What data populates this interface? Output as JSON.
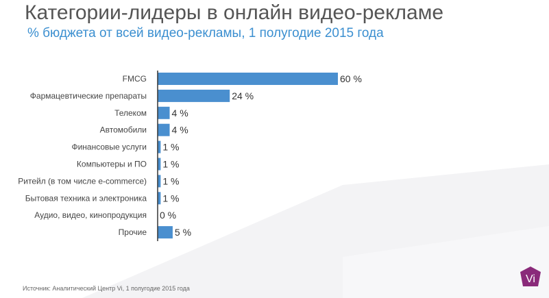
{
  "header": {
    "title": "Категории-лидеры в онлайн видео-рекламе",
    "subtitle": "% бюджета от всей видео-рекламы, 1 полугодие 2015 года"
  },
  "footer": {
    "source": "Источник: Аналитический Центр Vi, 1 полугодие 2015 года",
    "logo_text": "Vi"
  },
  "colors": {
    "bar": "#4a8fcf",
    "title": "#555555",
    "subtitle": "#3b8fd0",
    "logo": "#8a2a7a"
  },
  "chart_data": {
    "type": "bar",
    "orientation": "horizontal",
    "title": "Категории-лидеры в онлайн видео-рекламе",
    "subtitle": "% бюджета от всей видео-рекламы, 1 полугодие 2015 года",
    "categories": [
      "FMCG",
      "Фармацевтические препараты",
      "Телеком",
      "Автомобили",
      "Финансовые услуги",
      "Компьютеры и ПО",
      "Ритейл (в том числе e-commerce)",
      "Бытовая техника и электроника",
      "Аудио, видео, кинопродукция",
      "Прочие"
    ],
    "values": [
      60,
      24,
      4,
      4,
      1,
      1,
      1,
      1,
      0,
      5
    ],
    "labels": [
      "60 %",
      "24 %",
      "4 %",
      "4 %",
      "1 %",
      "1 %",
      "1 %",
      "1 %",
      "0 %",
      "5 %"
    ],
    "xlim": [
      0,
      60
    ],
    "grid": false,
    "legend": "none"
  }
}
